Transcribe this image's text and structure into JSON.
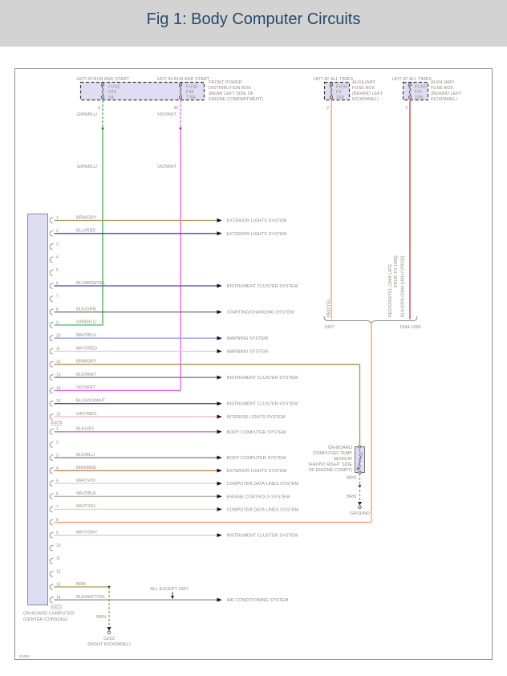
{
  "header": {
    "title": "Fig 1: Body Computer Circuits"
  },
  "diagram_code": "83490",
  "power_left": {
    "hot_label_1": "HOT IN RUN AND START",
    "hot_label_2": "HOT IN RUN AND START",
    "box_label": [
      "FRONT POWER",
      "DISTRIBUTION BOX",
      "(REAR LEFT SIDE OF",
      "ENGINE COMPARTMENT)"
    ],
    "fuse1": {
      "name": "FUSE",
      "id": "F23",
      "amps": "5A",
      "pin": "6",
      "wire": "GRN/BLU",
      "wire_label_2": "GRN/BLU",
      "color": "#44b054"
    },
    "fuse2": {
      "name": "FUSE",
      "id": "F45",
      "amps": "7.5A",
      "pin": "30",
      "wire": "VIO/WHT",
      "wire_label_2": "VIO/WHT",
      "color": "#ef5bef"
    }
  },
  "power_right_1": {
    "hot_label": "HOT AT ALL TIMES",
    "fuse": {
      "name": "FUSE",
      "id": "F3",
      "amps": "15A"
    },
    "pin": "2",
    "box_label": [
      "AUXILIARY",
      "FUSE BOX",
      "(BEHIND LEFT",
      "KICKPANEL)"
    ],
    "wire_rotated": "RED/YEL",
    "color": "#f5996c"
  },
  "power_right_2": {
    "hot_label": "HOT AT ALL TIMES",
    "fuse": {
      "name": "FUSE",
      "id": "F47",
      "amps": "15A"
    },
    "pin": "2",
    "box_label": [
      "AUXILIARY",
      "FUSE BOX",
      "(BEHIND LEFT",
      "KICKPANEL)"
    ],
    "wire_rotated_1": "RED/GRN/YEL (1994 LATE",
    "wire_rotated_1b": "PROD TO 1996)",
    "wire_rotated_2": "BLK/GRN (1994 EARLY PROD)",
    "color": "#d23c3c"
  },
  "merge": {
    "year_left": "1997",
    "year_right": "1994-1996"
  },
  "computer": {
    "name_line_1": "ON-BOARD COMPUTER",
    "name_line_2": "(CENTER CONSOLE)",
    "connector1_id": "X1070",
    "connector2_id": "X1071",
    "section1": [
      {
        "pin": "1",
        "wire": "BRN/GRY",
        "color": "#a69050",
        "dest": "EXTERIOR LIGHTS SYSTEM",
        "link": "arrow"
      },
      {
        "pin": "2",
        "wire": "BLU/RED",
        "color": "#4040cc",
        "dest": "EXTERIOR LIGHTS SYSTEM",
        "link": "arrow"
      },
      {
        "pin": "3",
        "wire": "",
        "color": "",
        "dest": "",
        "link": "none"
      },
      {
        "pin": "4",
        "wire": "",
        "color": "",
        "dest": "",
        "link": "none"
      },
      {
        "pin": "5",
        "wire": "",
        "color": "",
        "dest": "",
        "link": "none"
      },
      {
        "pin": "6",
        "wire": "BLU/BRN/YEL",
        "color": "#4040cc",
        "dest": "INSTRUMENT CLUSTER SYSTEM",
        "link": "arrow"
      },
      {
        "pin": "7",
        "wire": "",
        "color": "",
        "dest": "",
        "link": "none"
      },
      {
        "pin": "8",
        "wire": "BLK/GRN",
        "color": "#567d57",
        "dest": "STARTING/CHARGING SYSTEM",
        "link": "arrow"
      },
      {
        "pin": "9",
        "wire": "GRN/BLU",
        "color": "#44b054",
        "dest": "",
        "link": "from-fuse1"
      },
      {
        "pin": "10",
        "wire": "WHT/BLU",
        "color": "#9a9ae4",
        "dest": "WARNING SYSTEM",
        "link": "arrow"
      },
      {
        "pin": "11",
        "wire": "WHT/RED",
        "color": "#efc3c8",
        "dest": "WARNING SYSTEM",
        "link": "arrow"
      },
      {
        "pin": "12",
        "wire": "BRN/GRY",
        "color": "#a69050",
        "dest": "",
        "link": "to-sensor"
      },
      {
        "pin": "13",
        "wire": "BLK/WHT",
        "color": "#6e6e6e",
        "dest": "INSTRUMENT CLUSTER SYSTEM",
        "link": "arrow"
      },
      {
        "pin": "14",
        "wire": "VIO/WHT",
        "color": "#ef5bef",
        "dest": "",
        "link": "from-fuse2"
      },
      {
        "pin": "15",
        "wire": "BLU/VIO/WHT",
        "color": "#4848cc",
        "dest": "INSTRUMENT CLUSTER SYSTEM",
        "link": "arrow"
      },
      {
        "pin": "16",
        "wire": "GRY/RED",
        "color": "#ecb9bf",
        "dest": "INTERIOR LIGHTS SYSTEM",
        "link": "arrow"
      }
    ],
    "section2": [
      {
        "pin": "1",
        "wire": "BLK/VIO",
        "color": "#c873d2",
        "dest": "BODY COMPUTER SYSTEM",
        "link": "arrow"
      },
      {
        "pin": "2",
        "wire": "",
        "color": "",
        "dest": "",
        "link": "none"
      },
      {
        "pin": "3",
        "wire": "BLK/BLU",
        "color": "#7474bc",
        "dest": "BODY COMPUTER SYSTEM",
        "link": "arrow"
      },
      {
        "pin": "4",
        "wire": "BRN/RED",
        "color": "#c4733c",
        "dest": "EXTERIOR LIGHTS SYSTEM",
        "link": "arrow"
      },
      {
        "pin": "5",
        "wire": "WHT/VIO",
        "color": "#eec6ee",
        "dest": "COMPUTER DATA LINES SYSTEM",
        "link": "arrow"
      },
      {
        "pin": "6",
        "wire": "WHT/BLK",
        "color": "#b6b6ae",
        "dest": "ENGINE CONTROLS SYSTEM",
        "link": "arrow"
      },
      {
        "pin": "7",
        "wire": "WHT/YEL",
        "color": "#dedcaa",
        "dest": "COMPUTER DATA LINES SYSTEM",
        "link": "arrow"
      },
      {
        "pin": "8",
        "wire": "",
        "color": "#f5996c",
        "dest": "",
        "link": "from-merge"
      },
      {
        "pin": "9",
        "wire": "WHT/GRY",
        "color": "#ccccc4",
        "dest": "INSTRUMENT CLUSTER SYSTEM",
        "link": "arrow"
      },
      {
        "pin": "10",
        "wire": "",
        "color": "",
        "dest": "",
        "link": "none"
      },
      {
        "pin": "11",
        "wire": "",
        "color": "",
        "dest": "",
        "link": "none"
      },
      {
        "pin": "12",
        "wire": "",
        "color": "",
        "dest": "",
        "link": "none"
      },
      {
        "pin": "13",
        "wire": "BRN",
        "color": "#ab9a50",
        "dest": "",
        "link": "to-ground"
      },
      {
        "pin": "14",
        "wire": "BLK/WHT/YEL",
        "color": "#8c8c84",
        "dest": "AIR CONDITIONING SYSTEM",
        "link": "arrow"
      }
    ]
  },
  "sensor": {
    "label": [
      "ON-BOARD",
      "COMPUTER TEMP",
      "SENSOR",
      "(FRONT RIGHT SIDE",
      "OF ENGINE COMPT)"
    ],
    "wire_below_1": "BRN",
    "wire_below_2": "BRN",
    "ground_label": "GROUND",
    "wire_color": "#ab9a50"
  },
  "ground_g203": {
    "wire_label": "BRN",
    "id": "G203",
    "location": "(RIGHT KICKPANEL)",
    "note": "ALL EXCEPT 1997"
  }
}
